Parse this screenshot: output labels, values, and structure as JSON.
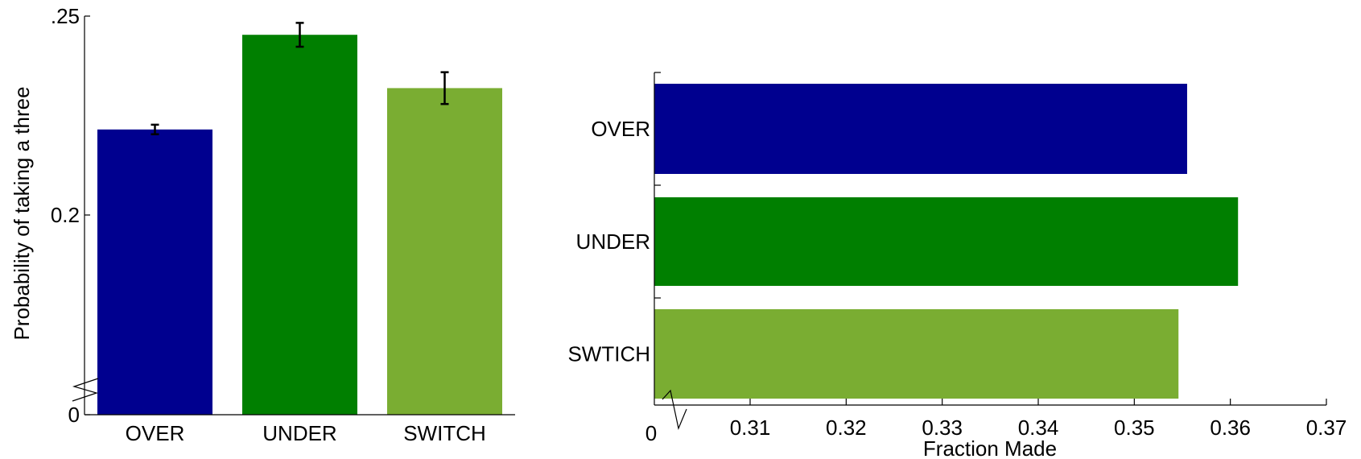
{
  "chart_data": [
    {
      "type": "bar",
      "orientation": "vertical",
      "categories": [
        "OVER",
        "UNDER",
        "SWITCH"
      ],
      "values": [
        0.2215,
        0.2453,
        0.2319
      ],
      "error_bars": [
        0.0012,
        0.003,
        0.004
      ],
      "colors": [
        "#00008F",
        "#007F00",
        "#7AAD32"
      ],
      "title": "",
      "xlabel": "",
      "ylabel": "Probability of taking a three",
      "y_axis_break": true,
      "yticks": [
        {
          "value": 0,
          "label": "0"
        },
        {
          "value": 0.2,
          "label": "0.2"
        },
        {
          "value": 0.25,
          "label": ".25"
        }
      ],
      "grid": false
    },
    {
      "type": "bar",
      "orientation": "horizontal",
      "categories": [
        "OVER",
        "UNDER",
        "SWTICH"
      ],
      "values": [
        0.3555,
        0.3608,
        0.3546
      ],
      "colors": [
        "#00008F",
        "#007F00",
        "#7AAD32"
      ],
      "title": "",
      "xlabel": "Fraction Made",
      "ylabel": "",
      "x_axis_break": true,
      "xticks": [
        {
          "value": 0.3,
          "label": "0"
        },
        {
          "value": 0.31,
          "label": "0.31"
        },
        {
          "value": 0.32,
          "label": "0.32"
        },
        {
          "value": 0.33,
          "label": "0.33"
        },
        {
          "value": 0.34,
          "label": "0.34"
        },
        {
          "value": 0.35,
          "label": "0.35"
        },
        {
          "value": 0.36,
          "label": "0.36"
        },
        {
          "value": 0.37,
          "label": "0.37"
        }
      ],
      "grid": false
    }
  ]
}
